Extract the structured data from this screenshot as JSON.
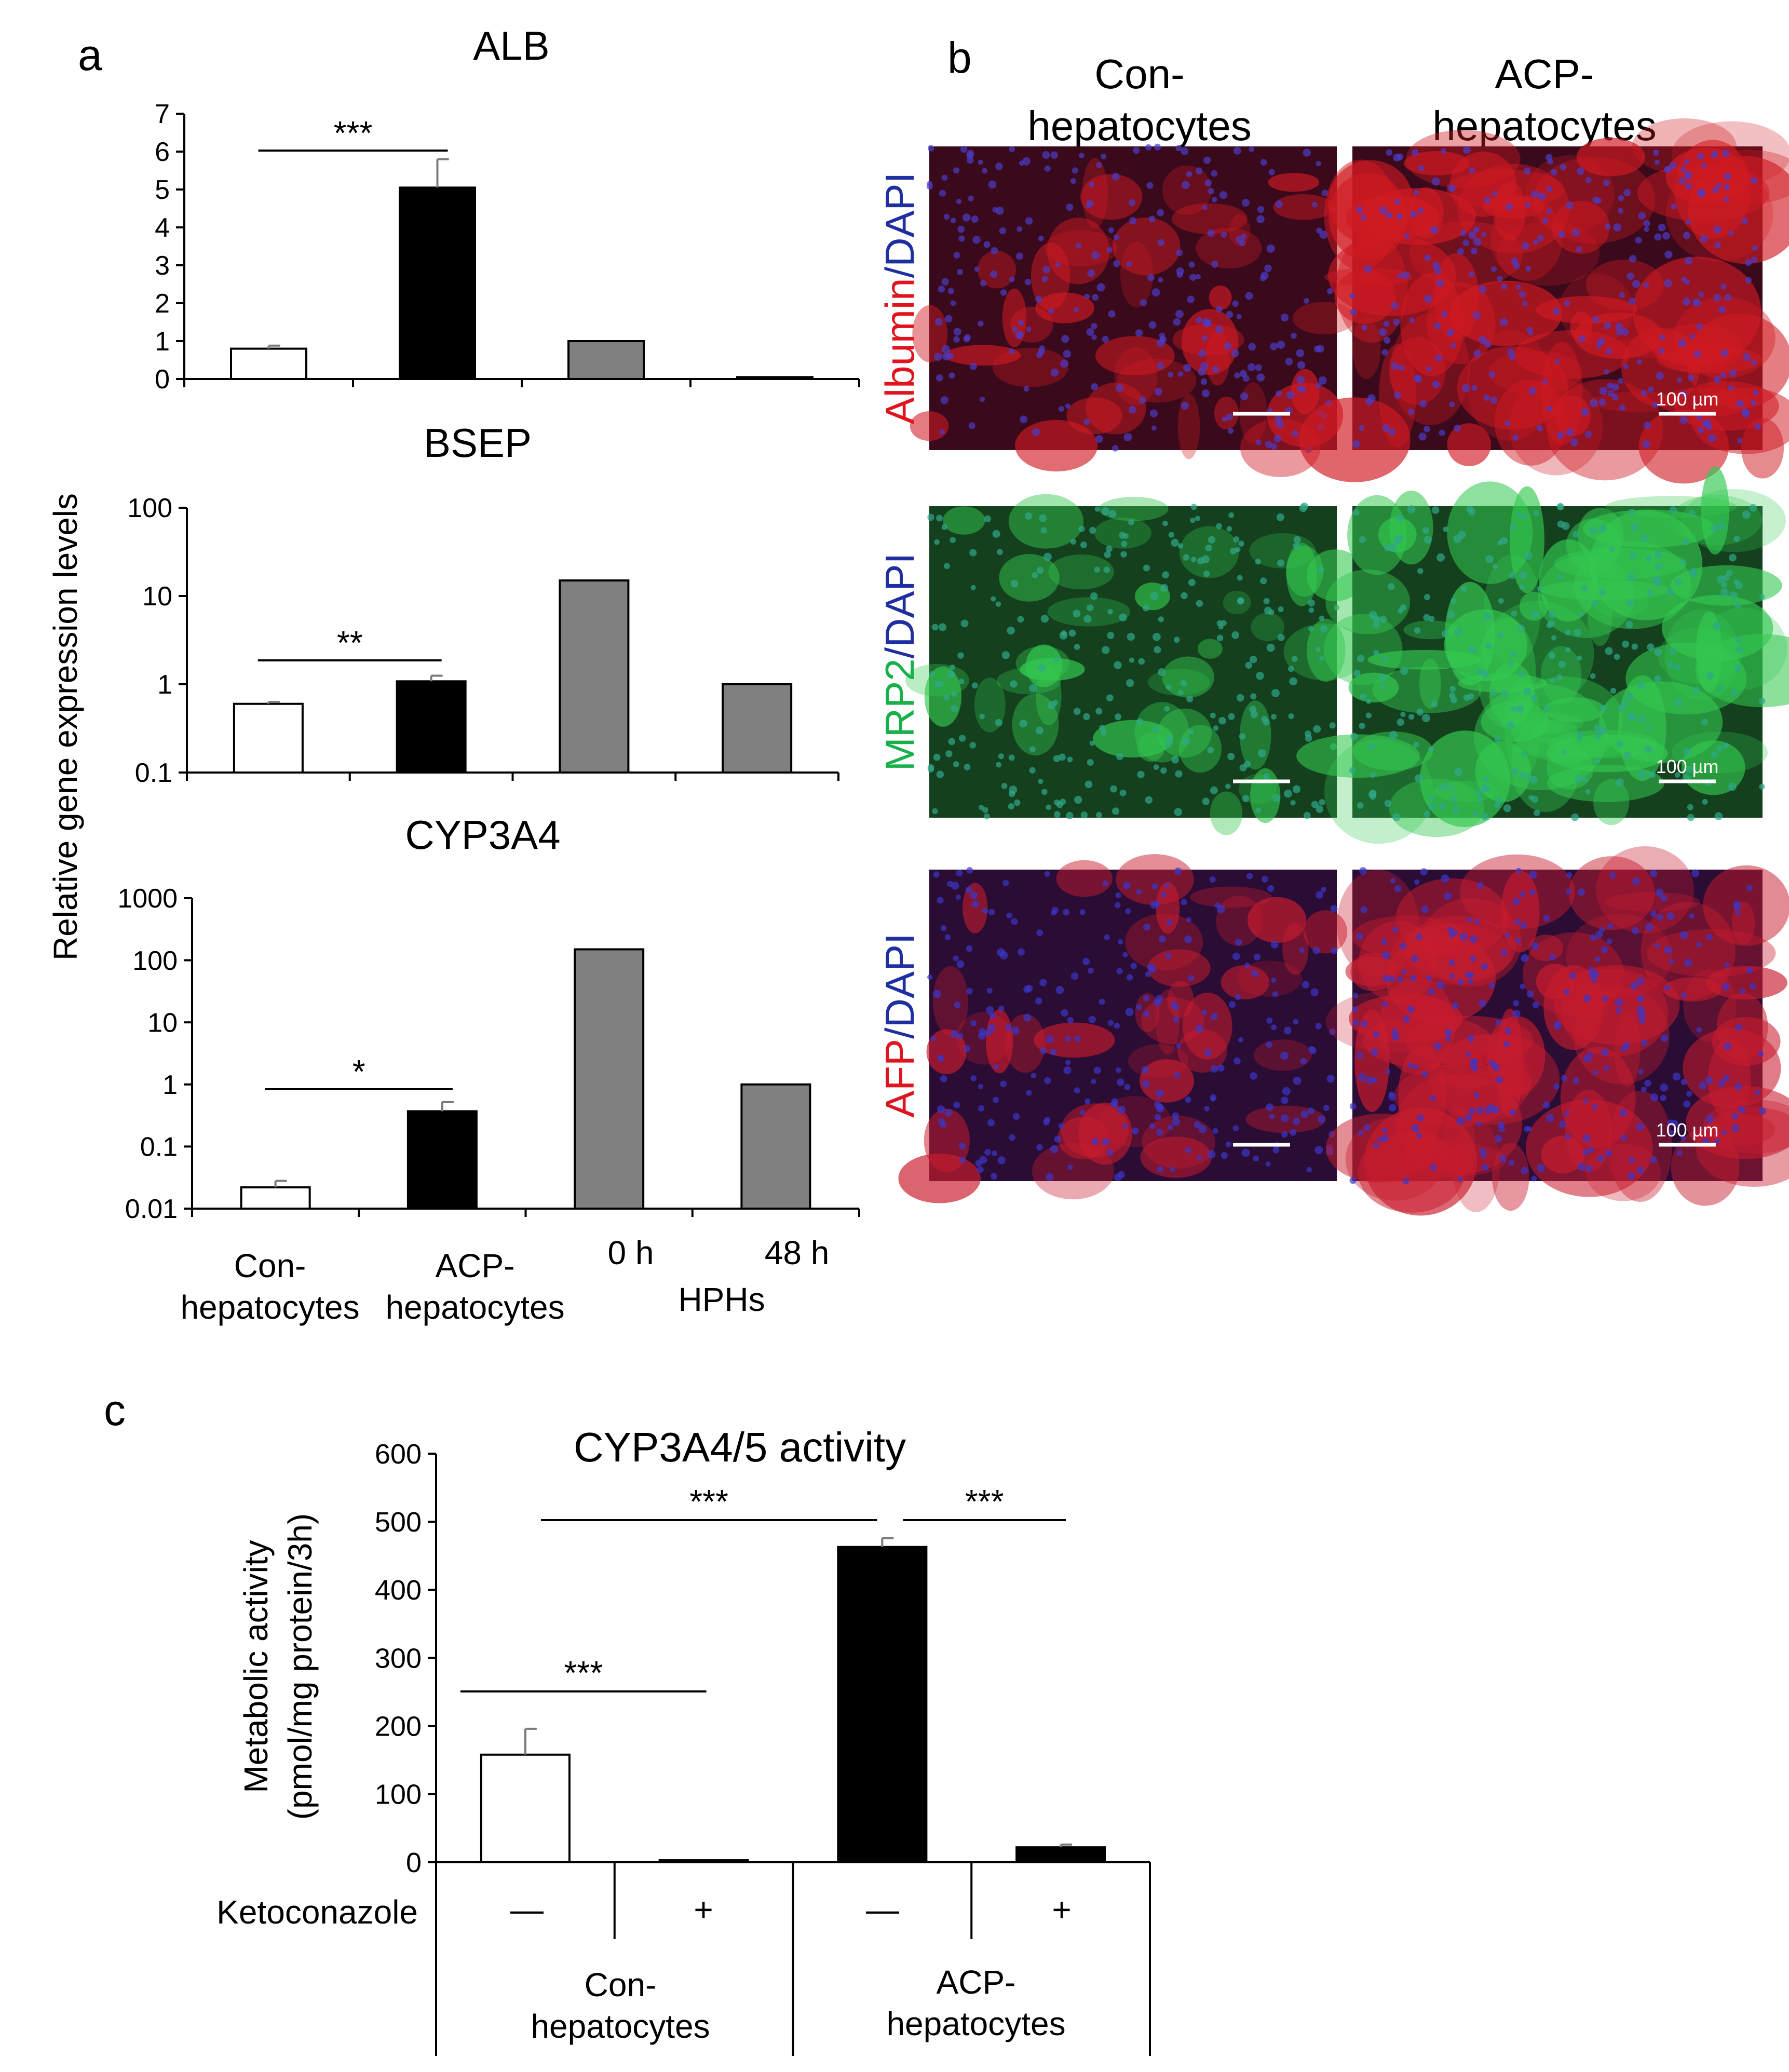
{
  "panel_labels": {
    "a": "a",
    "b": "b",
    "c": "c"
  },
  "panel_a": {
    "shared_ylabel": "Relative gene expression levels",
    "x_categories": [
      {
        "line1": "Con-",
        "line2": "hepatocytes"
      },
      {
        "line1": "ACP-",
        "line2": "hepatocytes"
      },
      {
        "line1": "0 h",
        "line2": ""
      },
      {
        "line1": "48 h",
        "line2": ""
      }
    ],
    "hph_group_label": "HPHs"
  },
  "chart_data": [
    {
      "type": "bar",
      "title": "ALB",
      "categories": [
        "Con-hepatocytes",
        "ACP-hepatocytes",
        "HPHs 0 h",
        "HPHs 48 h"
      ],
      "values": [
        0.8,
        5.05,
        1.0,
        0.05
      ],
      "errors": [
        0.08,
        0.75,
        0,
        0
      ],
      "bar_colors": [
        "#ffffff",
        "#000000",
        "#808080",
        "#808080"
      ],
      "ylim": [
        0,
        7
      ],
      "yscale": "linear",
      "yticks": [
        0,
        1,
        2,
        3,
        4,
        5,
        6,
        7
      ],
      "ytick_labels": [
        "0",
        "1",
        "2",
        "3",
        "4",
        "5",
        "6",
        "7"
      ],
      "significance": [
        {
          "from": 0,
          "to": 1,
          "label": "***"
        }
      ]
    },
    {
      "type": "bar",
      "title": "BSEP",
      "categories": [
        "Con-hepatocytes",
        "ACP-hepatocytes",
        "HPHs 0 h",
        "HPHs 48 h"
      ],
      "values": [
        0.6,
        1.08,
        15,
        1.0
      ],
      "errors": [
        0.03,
        0.17,
        0,
        0
      ],
      "bar_colors": [
        "#ffffff",
        "#000000",
        "#808080",
        "#808080"
      ],
      "ylim": [
        0.1,
        100
      ],
      "yscale": "log",
      "yticks": [
        0.1,
        1,
        10,
        100
      ],
      "ytick_labels": [
        "0.1",
        "1",
        "10",
        "100"
      ],
      "significance": [
        {
          "from": 0,
          "to": 1,
          "label": "**"
        }
      ]
    },
    {
      "type": "bar",
      "title": "CYP3A4",
      "categories": [
        "Con-hepatocytes",
        "ACP-hepatocytes",
        "HPHs 0 h",
        "HPHs 48 h"
      ],
      "values": [
        0.022,
        0.37,
        150,
        1.0
      ],
      "errors": [
        0.006,
        0.15,
        0,
        0
      ],
      "bar_colors": [
        "#ffffff",
        "#000000",
        "#808080",
        "#808080"
      ],
      "ylim": [
        0.01,
        1000
      ],
      "yscale": "log",
      "yticks": [
        0.01,
        0.1,
        1,
        10,
        100,
        1000
      ],
      "ytick_labels": [
        "0.01",
        "0.1",
        "1",
        "10",
        "100",
        "1000"
      ],
      "significance": [
        {
          "from": 0,
          "to": 1,
          "label": "*"
        }
      ]
    },
    {
      "type": "bar",
      "title": "CYP3A4/5 activity",
      "ylabel_line1": "Metabolic activity",
      "ylabel_line2": "(pmol/mg protein/3h)",
      "categories": [
        "Con-hepatocytes −",
        "Con-hepatocytes +",
        "ACP-hepatocytes −",
        "ACP-hepatocytes +"
      ],
      "values": [
        158,
        3,
        463,
        22
      ],
      "errors": [
        38,
        0,
        13,
        4
      ],
      "bar_colors": [
        "#ffffff",
        "#ffffff",
        "#000000",
        "#000000"
      ],
      "ylim": [
        0,
        600
      ],
      "yscale": "linear",
      "yticks": [
        0,
        100,
        200,
        300,
        400,
        500,
        600
      ],
      "ytick_labels": [
        "0",
        "100",
        "200",
        "300",
        "400",
        "500",
        "600"
      ],
      "significance": [
        {
          "from": 0,
          "to": 1,
          "label": "***"
        },
        {
          "from": 0,
          "to": 2,
          "label": "***"
        },
        {
          "from": 2,
          "to": 3,
          "label": "***"
        }
      ]
    }
  ],
  "panel_b": {
    "column_headers": [
      {
        "line1": "Con-",
        "line2": "hepatocytes"
      },
      {
        "line1": "ACP-",
        "line2": "hepatocytes"
      }
    ],
    "rows": [
      {
        "stain": "Albumin",
        "stain_color": "#e0141e",
        "sep": "/",
        "counter": "DAPI",
        "counter_color": "#1f2fa0",
        "bg": "#3a0a1c",
        "spot": "#d01a22",
        "dot": "#4a3cc8"
      },
      {
        "stain": "MRP2",
        "stain_color": "#18b04a",
        "sep": "/",
        "counter": "DAPI",
        "counter_color": "#1f2fa0",
        "bg": "#14401e",
        "spot": "#34c850",
        "dot": "#2fa88a"
      },
      {
        "stain": "AFP",
        "stain_color": "#e0141e",
        "sep": "/",
        "counter": "DAPI",
        "counter_color": "#1f2fa0",
        "bg": "#2a0c34",
        "spot": "#c81c2e",
        "dot": "#3a36c8"
      }
    ],
    "scale_bar_label": "100 µm"
  },
  "panel_c": {
    "factor_label": "Ketoconazole",
    "treatment_signs": [
      "—",
      "+",
      "—",
      "+"
    ],
    "group_labels": [
      {
        "line1": "Con-",
        "line2": "hepatocytes"
      },
      {
        "line1": "ACP-",
        "line2": "hepatocytes"
      }
    ]
  }
}
